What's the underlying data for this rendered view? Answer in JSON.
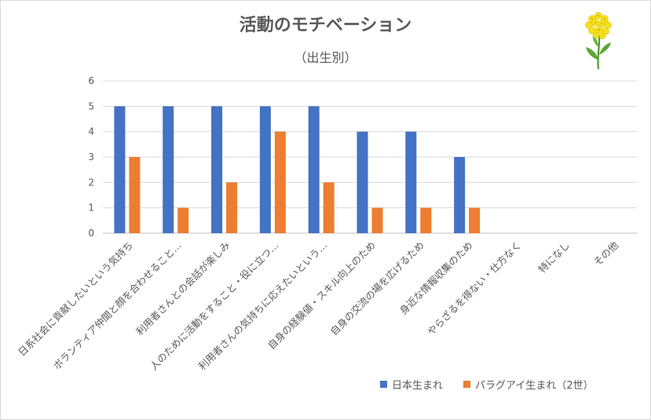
{
  "title": "活動のモチベーション",
  "subtitle": "（出生別）",
  "colors": {
    "series1": "#4472c4",
    "series2": "#ed7d31",
    "grid": "#d9d9d9",
    "text": "#595959"
  },
  "icon": "rapeseed-flower-icon",
  "chart_data": {
    "type": "bar",
    "title": "活動のモチベーション",
    "subtitle": "（出生別）",
    "xlabel": "",
    "ylabel": "",
    "ylim": [
      0,
      6
    ],
    "yticks": [
      "0",
      "1",
      "2",
      "3",
      "4",
      "5",
      "6"
    ],
    "grid": true,
    "legend_position": "bottom-right",
    "categories": [
      "日系社会に貢献したいという気持ち",
      "ボランティア仲間と顔を合わせること…",
      "利用者さんとの会話が楽しみ",
      "人のために活動をすること・役に立つ…",
      "利用者さんの気持ちに応えたいという…",
      "自身の経験値・スキル向上のため",
      "自身の交流の場を広げるため",
      "身近な情報収集のため",
      "やらざるを得ない・仕方なく",
      "特になし",
      "その他"
    ],
    "series": [
      {
        "name": "日本生まれ",
        "values": [
          5,
          5,
          5,
          5,
          5,
          4,
          4,
          3,
          0,
          0,
          0
        ]
      },
      {
        "name": "パラグアイ生まれ（2世）",
        "values": [
          3,
          1,
          2,
          4,
          2,
          1,
          1,
          1,
          0,
          0,
          0
        ]
      }
    ]
  }
}
